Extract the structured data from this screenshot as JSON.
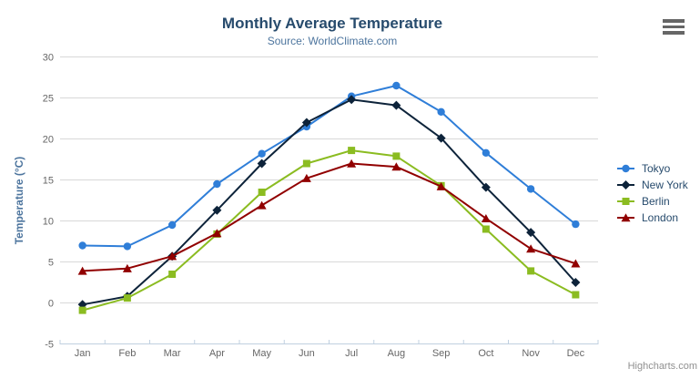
{
  "header": {
    "title": "Monthly Average Temperature",
    "subtitle": "Source: WorldClimate.com"
  },
  "chart_data": {
    "type": "line",
    "title": "Monthly Average Temperature",
    "subtitle": "Source: WorldClimate.com",
    "categories": [
      "Jan",
      "Feb",
      "Mar",
      "Apr",
      "May",
      "Jun",
      "Jul",
      "Aug",
      "Sep",
      "Oct",
      "Nov",
      "Dec"
    ],
    "xlabel": "",
    "ylabel": "Temperature (°C)",
    "ylim": [
      -5,
      30
    ],
    "yticks": [
      -5,
      0,
      5,
      10,
      15,
      20,
      25,
      30
    ],
    "grid": true,
    "legend_position": "right",
    "series": [
      {
        "name": "Tokyo",
        "color": "#2f7ed8",
        "marker": "circle",
        "values": [
          7.0,
          6.9,
          9.5,
          14.5,
          18.2,
          21.5,
          25.2,
          26.5,
          23.3,
          18.3,
          13.9,
          9.6
        ]
      },
      {
        "name": "New York",
        "color": "#0d233a",
        "marker": "diamond",
        "values": [
          -0.2,
          0.8,
          5.7,
          11.3,
          17.0,
          22.0,
          24.8,
          24.1,
          20.1,
          14.1,
          8.6,
          2.5
        ]
      },
      {
        "name": "Berlin",
        "color": "#8bbc21",
        "marker": "square",
        "values": [
          -0.9,
          0.6,
          3.5,
          8.4,
          13.5,
          17.0,
          18.6,
          17.9,
          14.3,
          9.0,
          3.9,
          1.0
        ]
      },
      {
        "name": "London",
        "color": "#910000",
        "marker": "triangle",
        "values": [
          3.9,
          4.2,
          5.7,
          8.5,
          11.9,
          15.2,
          17.0,
          16.6,
          14.2,
          10.3,
          6.6,
          4.8
        ]
      }
    ]
  },
  "credit": {
    "label": "Highcharts.com"
  },
  "colors": {
    "grid": "#d8d8d8",
    "axis_line": "#c0d0e0",
    "tick_label": "#666666",
    "axis_title": "#4d759e",
    "title": "#274b6d",
    "subtitle": "#4d759e",
    "legend_text": "#274b6d",
    "credit": "#909090"
  }
}
